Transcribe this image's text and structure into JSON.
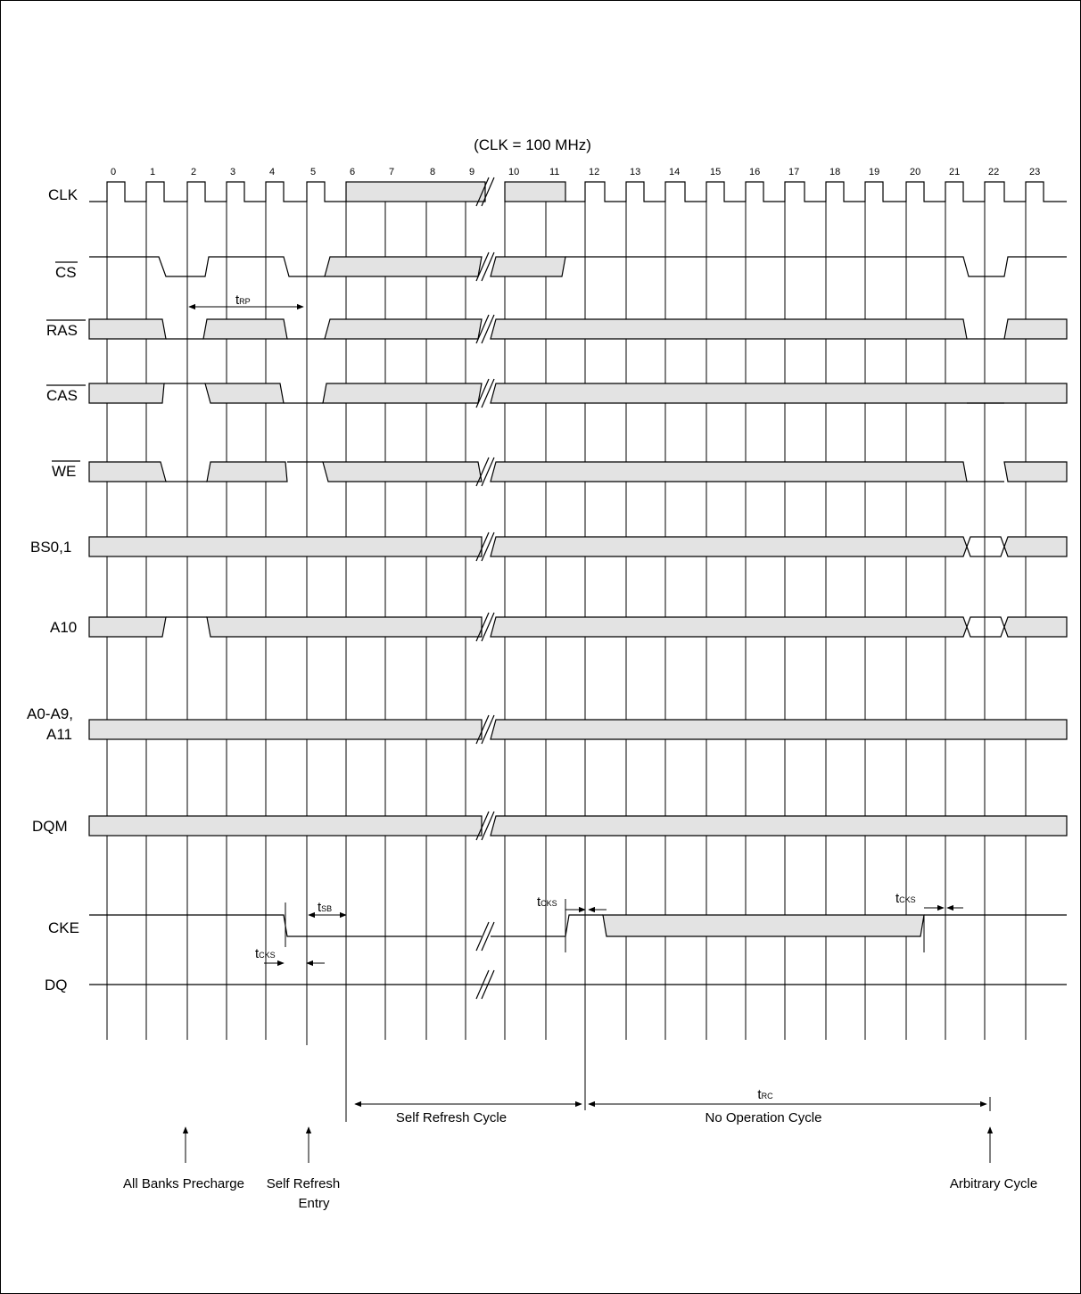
{
  "title": "(CLK = 100 MHz)",
  "signals": {
    "clk": "CLK",
    "cs": "CS",
    "ras": "RAS",
    "cas": "CAS",
    "we": "WE",
    "bs": "BS0,1",
    "a10": "A10",
    "addr_line1": "A0-A9,",
    "addr_line2": "A11",
    "dqm": "DQM",
    "cke": "CKE",
    "dq": "DQ"
  },
  "clock_numbers": [
    "0",
    "1",
    "2",
    "3",
    "4",
    "5",
    "6",
    "7",
    "8",
    "9",
    "10",
    "11",
    "12",
    "13",
    "14",
    "15",
    "16",
    "17",
    "18",
    "19",
    "20",
    "21",
    "22",
    "23"
  ],
  "timing": {
    "trp": {
      "t": "t",
      "sub": "RP"
    },
    "tsb": {
      "t": "t",
      "sub": "SB"
    },
    "tcks": {
      "t": "t",
      "sub": "CKS"
    },
    "trc": {
      "t": "t",
      "sub": "RC"
    }
  },
  "cycles": {
    "self_refresh": "Self Refresh Cycle",
    "no_operation": "No Operation Cycle"
  },
  "events": {
    "all_banks_precharge": "All Banks Precharge",
    "self_refresh_entry_1": "Self Refresh",
    "self_refresh_entry_2": "Entry",
    "arbitrary_cycle": "Arbitrary Cycle"
  },
  "colors": {
    "bus_fill": "#e3e3e3",
    "line": "#000000"
  }
}
